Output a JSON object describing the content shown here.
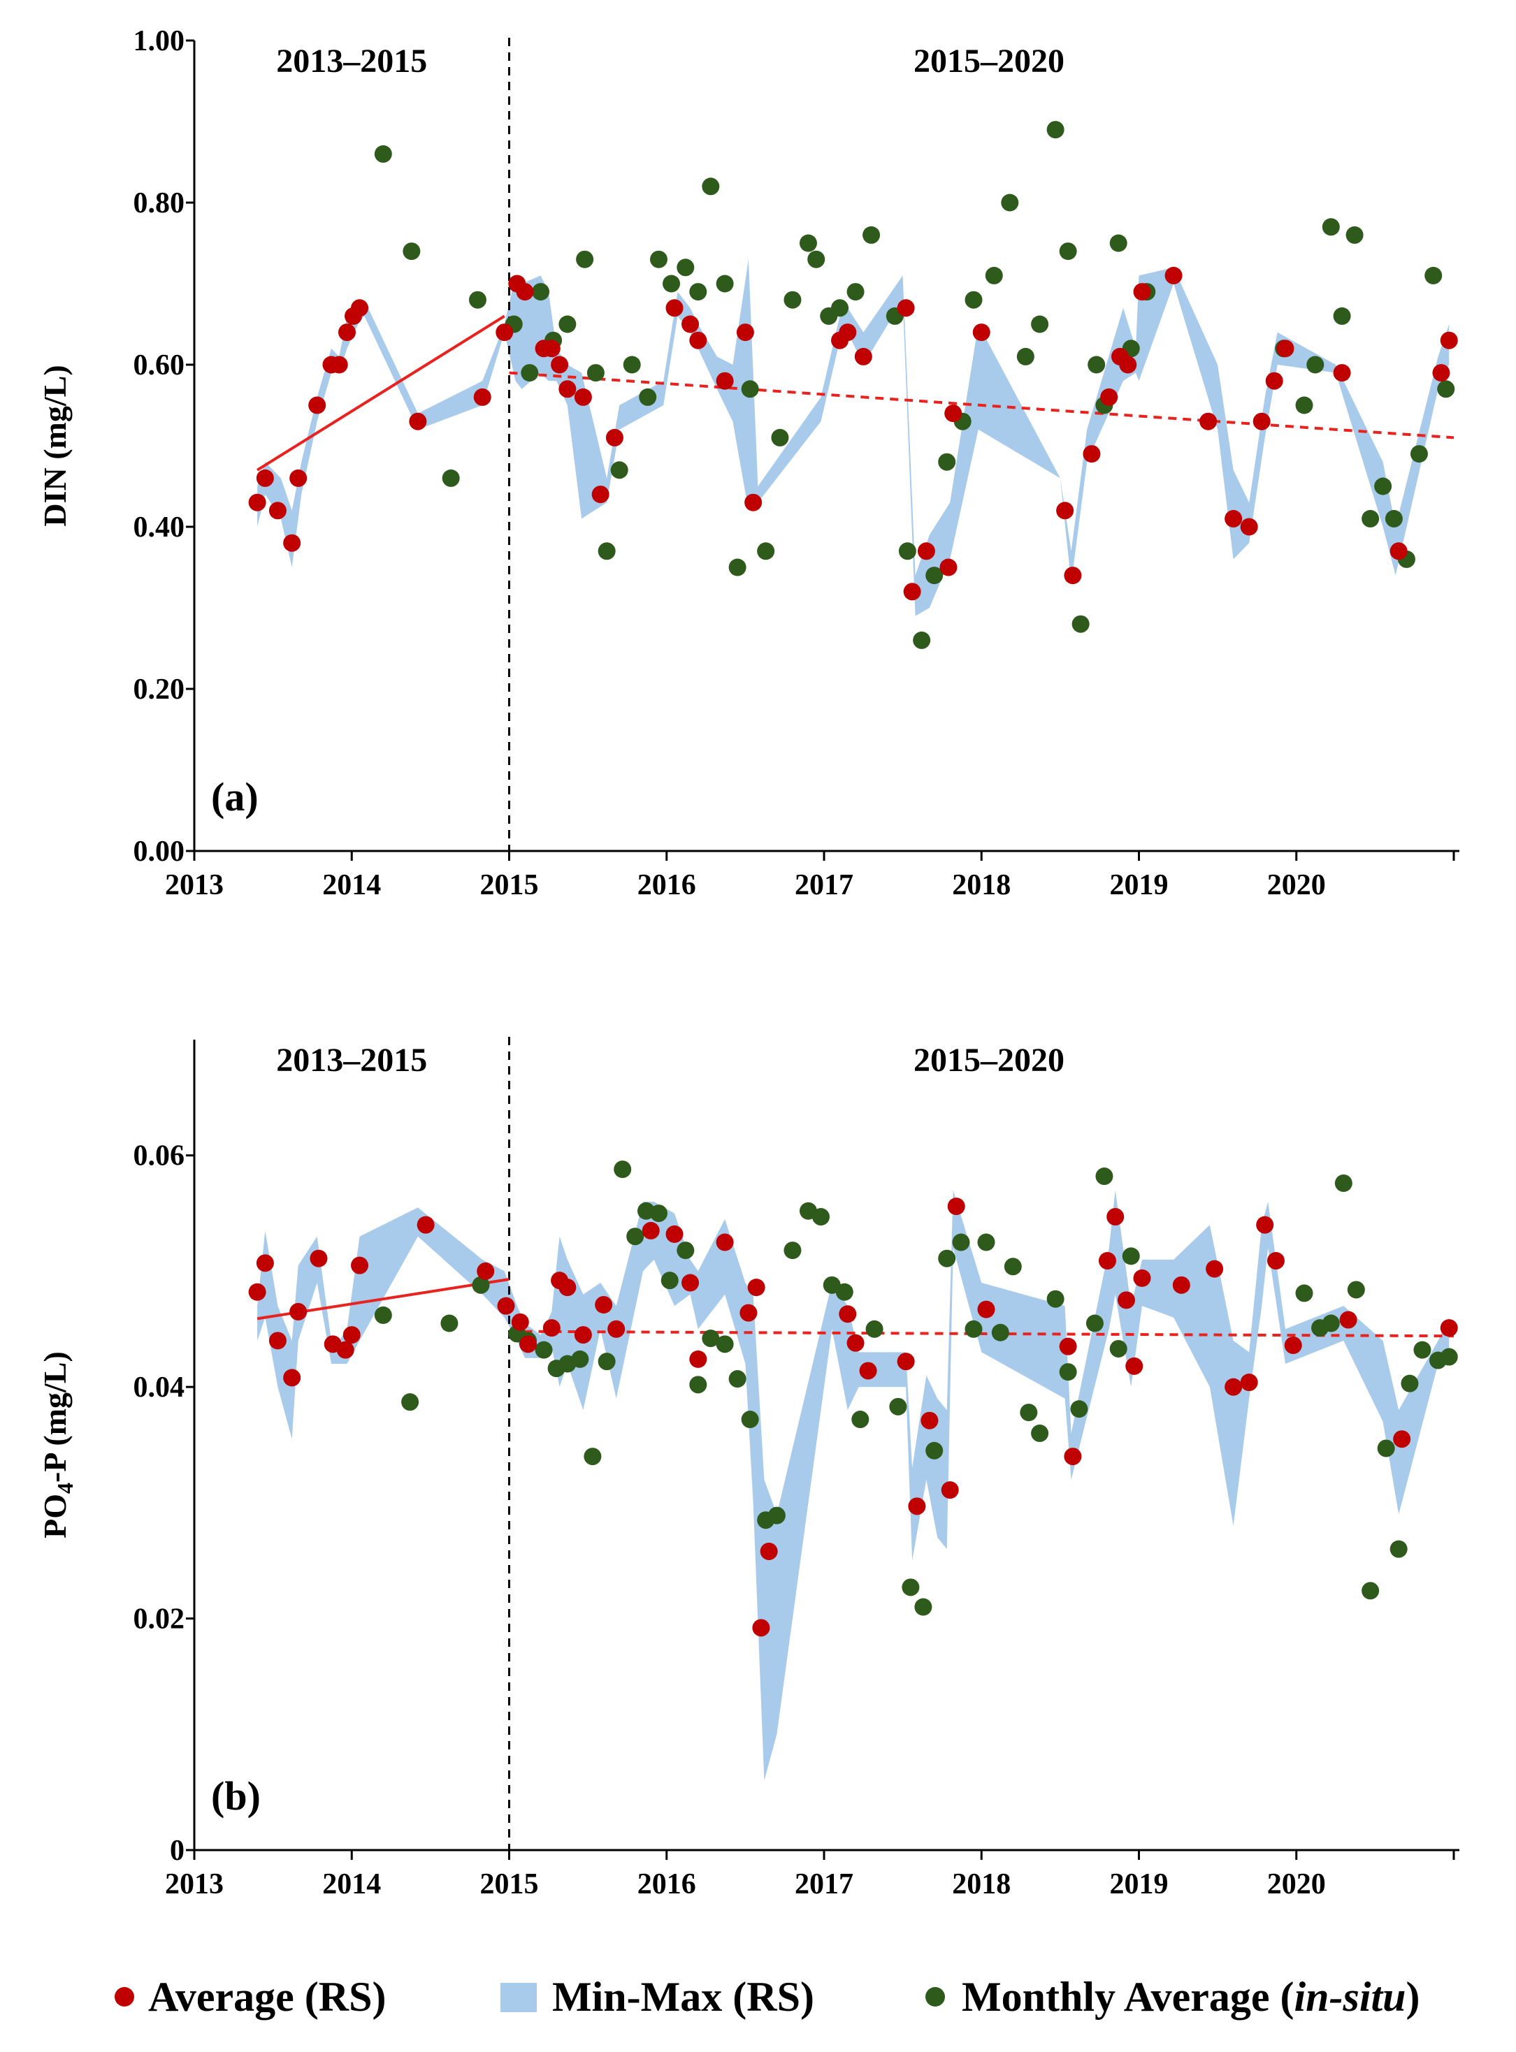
{
  "colors": {
    "average_rs": "#C00000",
    "minmax_rs": "#A9CBEB",
    "in_situ": "#2E5A1C",
    "trend": "#E8231F"
  },
  "legend": {
    "average": "Average (RS)",
    "minmax": "Min-Max (RS)",
    "insitu_prefix": "Monthly Average (",
    "insitu_italic": "in-situ",
    "insitu_suffix": ")"
  },
  "chart_data": [
    {
      "type": "scatter",
      "panel_label": "(a)",
      "ylabel": "DIN (mg/L)",
      "xlabel": "",
      "xlim": [
        2013,
        2021
      ],
      "ylim": [
        0,
        1
      ],
      "x_ticks": [
        "2013",
        "2014",
        "2015",
        "2016",
        "2017",
        "2018",
        "2019",
        "2020"
      ],
      "y_ticks": [
        "0.00",
        "0.20",
        "0.40",
        "0.60",
        "0.80",
        "1.00"
      ],
      "period_labels": [
        "2013–2015",
        "2015–2020"
      ],
      "divider_x": 2015,
      "series": [
        {
          "name": "Min-Max (RS)",
          "kind": "band",
          "x": [
            2013.4,
            2013.45,
            2013.55,
            2013.62,
            2013.68,
            2013.78,
            2013.87,
            2013.92,
            2013.97,
            2014.04,
            2014.08,
            2014.42,
            2014.83,
            2014.97,
            2015.04,
            2015.08,
            2015.2,
            2015.25,
            2015.3,
            2015.37,
            2015.46,
            2015.62,
            2015.7,
            2015.98,
            2016.07,
            2016.15,
            2016.2,
            2016.32,
            2016.42,
            2016.52,
            2016.58,
            2016.98,
            2017.1,
            2017.15,
            2017.25,
            2017.5,
            2017.58,
            2017.67,
            2017.8,
            2017.98,
            2018.5,
            2018.57,
            2018.67,
            2018.9,
            2018.98,
            2019.0,
            2019.22,
            2019.5,
            2019.6,
            2019.7,
            2019.8,
            2019.88,
            2020.25,
            2020.55,
            2020.63,
            2020.9,
            2020.97
          ],
          "min": [
            0.4,
            0.44,
            0.41,
            0.35,
            0.44,
            0.53,
            0.59,
            0.59,
            0.62,
            0.65,
            0.66,
            0.52,
            0.55,
            0.64,
            0.58,
            0.57,
            0.59,
            0.58,
            0.58,
            0.55,
            0.41,
            0.43,
            0.52,
            0.55,
            0.66,
            0.64,
            0.62,
            0.57,
            0.53,
            0.42,
            0.43,
            0.53,
            0.63,
            0.64,
            0.6,
            0.68,
            0.29,
            0.3,
            0.36,
            0.52,
            0.46,
            0.33,
            0.48,
            0.58,
            0.59,
            0.58,
            0.7,
            0.52,
            0.36,
            0.38,
            0.51,
            0.6,
            0.59,
            0.4,
            0.34,
            0.57,
            0.6
          ],
          "max": [
            0.45,
            0.48,
            0.46,
            0.42,
            0.48,
            0.56,
            0.62,
            0.61,
            0.66,
            0.67,
            0.68,
            0.54,
            0.58,
            0.65,
            0.71,
            0.7,
            0.71,
            0.69,
            0.62,
            0.6,
            0.59,
            0.46,
            0.55,
            0.58,
            0.69,
            0.67,
            0.65,
            0.61,
            0.6,
            0.73,
            0.45,
            0.56,
            0.66,
            0.67,
            0.64,
            0.71,
            0.34,
            0.39,
            0.43,
            0.65,
            0.46,
            0.37,
            0.52,
            0.67,
            0.62,
            0.71,
            0.72,
            0.6,
            0.47,
            0.43,
            0.56,
            0.64,
            0.6,
            0.48,
            0.4,
            0.61,
            0.65
          ]
        },
        {
          "name": "Average (RS)",
          "kind": "points",
          "x": [
            2013.4,
            2013.45,
            2013.53,
            2013.62,
            2013.66,
            2013.78,
            2013.87,
            2013.92,
            2013.97,
            2014.01,
            2014.05,
            2014.42,
            2014.83,
            2014.97,
            2015.05,
            2015.1,
            2015.22,
            2015.27,
            2015.32,
            2015.37,
            2015.47,
            2015.58,
            2015.67,
            2016.05,
            2016.15,
            2016.2,
            2016.37,
            2016.5,
            2016.55,
            2017.1,
            2017.15,
            2017.25,
            2017.52,
            2017.56,
            2017.65,
            2017.79,
            2017.82,
            2018.0,
            2018.53,
            2018.58,
            2018.7,
            2018.81,
            2018.88,
            2018.93,
            2019.02,
            2019.22,
            2019.44,
            2019.6,
            2019.7,
            2019.78,
            2019.86,
            2019.93,
            2020.29,
            2020.65,
            2020.92,
            2020.97
          ],
          "y": [
            0.43,
            0.46,
            0.42,
            0.38,
            0.46,
            0.55,
            0.6,
            0.6,
            0.64,
            0.66,
            0.67,
            0.53,
            0.56,
            0.64,
            0.7,
            0.69,
            0.62,
            0.62,
            0.6,
            0.57,
            0.56,
            0.44,
            0.51,
            0.67,
            0.65,
            0.63,
            0.58,
            0.64,
            0.43,
            0.63,
            0.64,
            0.61,
            0.67,
            0.32,
            0.37,
            0.35,
            0.54,
            0.64,
            0.42,
            0.34,
            0.49,
            0.56,
            0.61,
            0.6,
            0.69,
            0.71,
            0.53,
            0.41,
            0.4,
            0.53,
            0.58,
            0.62,
            0.59,
            0.37,
            0.59,
            0.63
          ]
        },
        {
          "name": "Monthly Average (in-situ)",
          "kind": "points",
          "x": [
            2014.2,
            2014.38,
            2014.63,
            2014.8,
            2015.03,
            2015.13,
            2015.2,
            2015.28,
            2015.37,
            2015.48,
            2015.55,
            2015.62,
            2015.7,
            2015.78,
            2015.88,
            2015.95,
            2016.03,
            2016.12,
            2016.2,
            2016.28,
            2016.37,
            2016.45,
            2016.53,
            2016.63,
            2016.72,
            2016.8,
            2016.9,
            2016.95,
            2017.03,
            2017.1,
            2017.2,
            2017.3,
            2017.45,
            2017.53,
            2017.62,
            2017.7,
            2017.78,
            2017.88,
            2017.95,
            2018.08,
            2018.18,
            2018.28,
            2018.37,
            2018.47,
            2018.55,
            2018.63,
            2018.73,
            2018.78,
            2018.87,
            2018.95,
            2019.05,
            2019.92,
            2020.05,
            2020.12,
            2020.22,
            2020.29,
            2020.37,
            2020.47,
            2020.55,
            2020.62,
            2020.7,
            2020.78,
            2020.87,
            2020.95
          ],
          "y": [
            0.86,
            0.74,
            0.46,
            0.68,
            0.65,
            0.59,
            0.69,
            0.63,
            0.65,
            0.73,
            0.59,
            0.37,
            0.47,
            0.6,
            0.56,
            0.73,
            0.7,
            0.72,
            0.69,
            0.82,
            0.7,
            0.35,
            0.57,
            0.37,
            0.51,
            0.68,
            0.75,
            0.73,
            0.66,
            0.67,
            0.69,
            0.76,
            0.66,
            0.37,
            0.26,
            0.34,
            0.48,
            0.53,
            0.68,
            0.71,
            0.8,
            0.61,
            0.65,
            0.89,
            0.74,
            0.28,
            0.6,
            0.55,
            0.75,
            0.62,
            0.69,
            0.62,
            0.55,
            0.6,
            0.77,
            0.66,
            0.76,
            0.41,
            0.45,
            0.41,
            0.36,
            0.49,
            0.71,
            0.57
          ]
        }
      ],
      "trends": [
        {
          "name": "2013–2015 trend",
          "style": "solid",
          "x": [
            2013.4,
            2014.97
          ],
          "y": [
            0.47,
            0.66
          ]
        },
        {
          "name": "2015–2020 trend",
          "style": "dashed",
          "x": [
            2015.0,
            2021.0
          ],
          "y": [
            0.59,
            0.51
          ]
        }
      ]
    },
    {
      "type": "scatter",
      "panel_label": "(b)",
      "ylabel_main": "PO",
      "ylabel_sub": "4",
      "ylabel_rest": "-P  (mg/L)",
      "xlabel": "",
      "xlim": [
        2013,
        2021
      ],
      "ylim": [
        0,
        0.07
      ],
      "x_ticks": [
        "2013",
        "2014",
        "2015",
        "2016",
        "2017",
        "2018",
        "2019",
        "2020"
      ],
      "y_ticks": [
        "0",
        "0.02",
        "0.04",
        "0.06"
      ],
      "period_labels": [
        "2013–2015",
        "2015–2020"
      ],
      "divider_x": 2015,
      "series": [
        {
          "name": "Min-Max (RS)",
          "kind": "band",
          "x": [
            2013.4,
            2013.45,
            2013.53,
            2013.62,
            2013.66,
            2013.78,
            2013.87,
            2013.92,
            2013.97,
            2014.05,
            2014.42,
            2014.83,
            2014.97,
            2015.05,
            2015.1,
            2015.2,
            2015.27,
            2015.32,
            2015.37,
            2015.47,
            2015.58,
            2015.68,
            2015.85,
            2015.92,
            2016.05,
            2016.15,
            2016.2,
            2016.37,
            2016.5,
            2016.55,
            2016.62,
            2016.7,
            2017.05,
            2017.15,
            2017.22,
            2017.3,
            2017.52,
            2017.56,
            2017.65,
            2017.72,
            2017.78,
            2017.82,
            2018.0,
            2018.53,
            2018.57,
            2018.81,
            2018.85,
            2018.95,
            2019.02,
            2019.22,
            2019.45,
            2019.6,
            2019.7,
            2019.78,
            2019.82,
            2019.93,
            2020.3,
            2020.55,
            2020.65,
            2020.9,
            2020.97
          ],
          "min": [
            0.044,
            0.046,
            0.04,
            0.0355,
            0.044,
            0.049,
            0.042,
            0.042,
            0.042,
            0.044,
            0.053,
            0.048,
            0.046,
            0.044,
            0.0425,
            0.0425,
            0.0435,
            0.04,
            0.042,
            0.038,
            0.045,
            0.039,
            0.05,
            0.051,
            0.047,
            0.048,
            0.045,
            0.048,
            0.042,
            0.03,
            0.006,
            0.01,
            0.045,
            0.038,
            0.04,
            0.04,
            0.04,
            0.025,
            0.032,
            0.027,
            0.026,
            0.052,
            0.043,
            0.039,
            0.032,
            0.045,
            0.048,
            0.04,
            0.047,
            0.046,
            0.04,
            0.028,
            0.039,
            0.047,
            0.052,
            0.042,
            0.044,
            0.037,
            0.029,
            0.042,
            0.043
          ],
          "max": [
            0.047,
            0.0535,
            0.047,
            0.044,
            0.0505,
            0.053,
            0.044,
            0.044,
            0.045,
            0.053,
            0.0555,
            0.051,
            0.05,
            0.047,
            0.0455,
            0.0445,
            0.0465,
            0.053,
            0.051,
            0.048,
            0.049,
            0.047,
            0.056,
            0.056,
            0.055,
            0.051,
            0.05,
            0.0545,
            0.049,
            0.048,
            0.032,
            0.029,
            0.049,
            0.047,
            0.043,
            0.043,
            0.043,
            0.033,
            0.041,
            0.039,
            0.038,
            0.057,
            0.049,
            0.047,
            0.036,
            0.052,
            0.057,
            0.047,
            0.051,
            0.051,
            0.054,
            0.044,
            0.043,
            0.054,
            0.056,
            0.045,
            0.047,
            0.044,
            0.038,
            0.044,
            0.046
          ]
        },
        {
          "name": "Average (RS)",
          "kind": "points",
          "x": [
            2013.4,
            2013.45,
            2013.53,
            2013.62,
            2013.66,
            2013.79,
            2013.88,
            2013.96,
            2014.0,
            2014.05,
            2014.47,
            2014.85,
            2014.98,
            2015.07,
            2015.12,
            2015.27,
            2015.32,
            2015.37,
            2015.47,
            2015.6,
            2015.68,
            2015.9,
            2016.05,
            2016.15,
            2016.2,
            2016.37,
            2016.52,
            2016.57,
            2016.6,
            2016.65,
            2017.15,
            2017.2,
            2017.28,
            2017.52,
            2017.59,
            2017.67,
            2017.8,
            2017.84,
            2018.03,
            2018.55,
            2018.58,
            2018.8,
            2018.85,
            2018.92,
            2018.97,
            2019.02,
            2019.27,
            2019.48,
            2019.6,
            2019.7,
            2019.8,
            2019.87,
            2019.98,
            2020.33,
            2020.67,
            2020.97
          ],
          "y": [
            0.0482,
            0.0507,
            0.044,
            0.0408,
            0.0465,
            0.0511,
            0.0437,
            0.0432,
            0.0445,
            0.0505,
            0.054,
            0.05,
            0.047,
            0.0456,
            0.0437,
            0.0451,
            0.0492,
            0.0486,
            0.0445,
            0.0471,
            0.045,
            0.0535,
            0.0532,
            0.049,
            0.0424,
            0.0525,
            0.0464,
            0.0486,
            0.0192,
            0.0258,
            0.0463,
            0.0438,
            0.0414,
            0.0422,
            0.0297,
            0.0371,
            0.0311,
            0.0556,
            0.0467,
            0.0435,
            0.034,
            0.0509,
            0.0547,
            0.0475,
            0.0418,
            0.0494,
            0.0488,
            0.0502,
            0.04,
            0.0404,
            0.054,
            0.0509,
            0.0436,
            0.0458,
            0.0355,
            0.0451
          ]
        },
        {
          "name": "Monthly Average (in-situ)",
          "kind": "points",
          "x": [
            2014.2,
            2014.37,
            2014.62,
            2014.82,
            2015.05,
            2015.12,
            2015.22,
            2015.3,
            2015.37,
            2015.45,
            2015.53,
            2015.62,
            2015.72,
            2015.8,
            2015.87,
            2015.95,
            2016.02,
            2016.12,
            2016.2,
            2016.28,
            2016.37,
            2016.45,
            2016.53,
            2016.63,
            2016.7,
            2016.8,
            2016.9,
            2016.98,
            2017.05,
            2017.13,
            2017.23,
            2017.32,
            2017.47,
            2017.55,
            2017.63,
            2017.7,
            2017.78,
            2017.87,
            2017.95,
            2018.03,
            2018.12,
            2018.2,
            2018.3,
            2018.37,
            2018.47,
            2018.55,
            2018.62,
            2018.72,
            2018.78,
            2018.87,
            2018.95,
            2020.05,
            2020.15,
            2020.22,
            2020.3,
            2020.38,
            2020.47,
            2020.57,
            2020.65,
            2020.72,
            2020.8,
            2020.9,
            2020.97
          ],
          "y": [
            0.0462,
            0.0387,
            0.0455,
            0.0488,
            0.0446,
            0.044,
            0.0432,
            0.0416,
            0.042,
            0.0424,
            0.034,
            0.0422,
            0.0588,
            0.053,
            0.0552,
            0.055,
            0.0492,
            0.0518,
            0.0402,
            0.0442,
            0.0437,
            0.0407,
            0.0372,
            0.0285,
            0.0289,
            0.0518,
            0.0552,
            0.0547,
            0.0488,
            0.0482,
            0.0372,
            0.045,
            0.0383,
            0.0227,
            0.021,
            0.0345,
            0.0511,
            0.0525,
            0.045,
            0.0525,
            0.0447,
            0.0504,
            0.0378,
            0.036,
            0.0476,
            0.0413,
            0.0381,
            0.0455,
            0.0582,
            0.0433,
            0.0513,
            0.0481,
            0.0451,
            0.0455,
            0.0576,
            0.0484,
            0.0224,
            0.0347,
            0.026,
            0.0403,
            0.0432,
            0.0423,
            0.0426
          ]
        }
      ],
      "trends": [
        {
          "name": "2013–2015 trend",
          "style": "solid",
          "x": [
            2013.4,
            2015.0
          ],
          "y": [
            0.0459,
            0.0493
          ]
        },
        {
          "name": "2015–2020 trend",
          "style": "dashed",
          "x": [
            2015.0,
            2021.0
          ],
          "y": [
            0.0448,
            0.0444
          ]
        }
      ]
    }
  ]
}
